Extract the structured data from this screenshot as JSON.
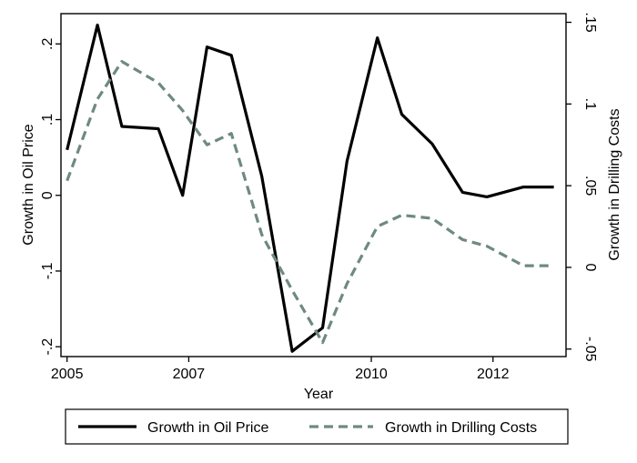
{
  "chart_data": {
    "type": "line",
    "xlabel": "Year",
    "ylabel_left": "Growth in Oil Price",
    "ylabel_right": "Growth in Drilling Costs",
    "x_ticks": [
      {
        "value": 2005,
        "label": "2005"
      },
      {
        "value": 2007,
        "label": "2007"
      },
      {
        "value": 2010,
        "label": "2010"
      },
      {
        "value": 2012,
        "label": "2012"
      }
    ],
    "y_left_ticks": [
      {
        "value": -0.2,
        "label": "-.2"
      },
      {
        "value": -0.1,
        "label": "-.1"
      },
      {
        "value": 0,
        "label": "0"
      },
      {
        "value": 0.1,
        "label": ".1"
      },
      {
        "value": 0.2,
        "label": ".2"
      }
    ],
    "y_right_ticks": [
      {
        "value": -0.05,
        "label": "-.05"
      },
      {
        "value": 0,
        "label": "0"
      },
      {
        "value": 0.05,
        "label": ".05"
      },
      {
        "value": 0.1,
        "label": ".1"
      },
      {
        "value": 0.15,
        "label": ".15"
      }
    ],
    "x_range": [
      2004.9,
      2013.2
    ],
    "y_left_range": [
      -0.213,
      0.24
    ],
    "y_right_range": [
      -0.0546,
      0.1553
    ],
    "grid": false,
    "legend_position": "bottom",
    "series": [
      {
        "name": "Growth in Oil Price",
        "axis": "left",
        "style": "solid",
        "color": "#000000",
        "x": [
          2005.0,
          2005.5,
          2005.9,
          2006.5,
          2006.9,
          2007.3,
          2007.7,
          2008.2,
          2008.7,
          2009.2,
          2009.6,
          2010.1,
          2010.5,
          2011.0,
          2011.5,
          2011.9,
          2012.5,
          2013.0
        ],
        "y": [
          0.06,
          0.225,
          0.091,
          0.088,
          0.0,
          0.196,
          0.185,
          0.025,
          -0.206,
          -0.175,
          0.045,
          0.208,
          0.107,
          0.068,
          0.004,
          -0.002,
          0.011,
          0.011
        ]
      },
      {
        "name": "Growth in Drilling Costs",
        "axis": "right",
        "style": "dashed",
        "color": "#6e8a7f",
        "x": [
          2005.0,
          2005.5,
          2005.9,
          2006.5,
          2006.9,
          2007.3,
          2007.7,
          2008.2,
          2008.7,
          2009.2,
          2009.6,
          2010.1,
          2010.5,
          2011.0,
          2011.5,
          2011.9,
          2012.5,
          2013.0
        ],
        "y": [
          0.053,
          0.103,
          0.126,
          0.113,
          0.096,
          0.075,
          0.082,
          0.02,
          -0.014,
          -0.046,
          -0.01,
          0.025,
          0.032,
          0.03,
          0.017,
          0.013,
          0.001,
          0.001
        ]
      }
    ]
  }
}
